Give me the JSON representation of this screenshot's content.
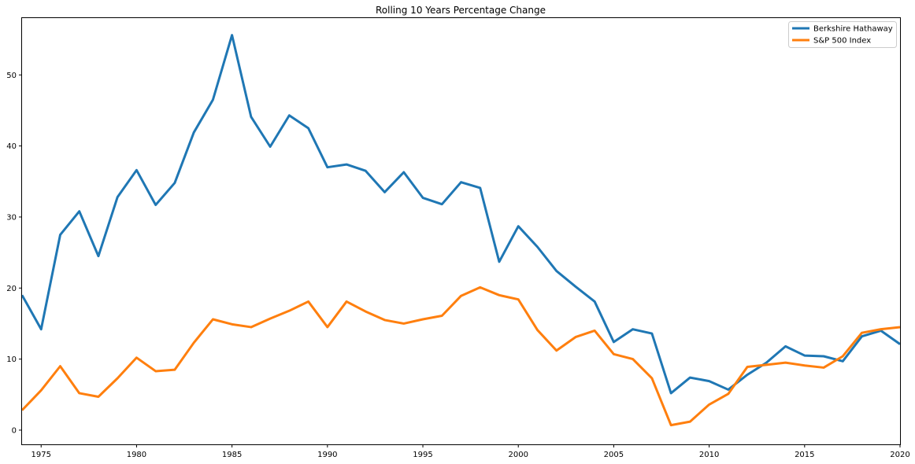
{
  "chart_data": {
    "type": "line",
    "title": "Rolling 10 Years Percentage Change",
    "xlabel": "",
    "ylabel": "",
    "xlim": [
      1974,
      2020
    ],
    "ylim": [
      -2,
      58
    ],
    "x_ticks": [
      1975,
      1980,
      1985,
      1990,
      1995,
      2000,
      2005,
      2010,
      2015,
      2020
    ],
    "y_ticks": [
      0,
      10,
      20,
      30,
      40,
      50
    ],
    "grid": false,
    "legend_position": "top-right",
    "x": [
      1974,
      1975,
      1976,
      1977,
      1978,
      1979,
      1980,
      1981,
      1982,
      1983,
      1984,
      1985,
      1986,
      1987,
      1988,
      1989,
      1990,
      1991,
      1992,
      1993,
      1994,
      1995,
      1996,
      1997,
      1998,
      1999,
      2000,
      2001,
      2002,
      2003,
      2004,
      2005,
      2006,
      2007,
      2008,
      2009,
      2010,
      2011,
      2012,
      2013,
      2014,
      2015,
      2016,
      2017,
      2018,
      2019,
      2020
    ],
    "series": [
      {
        "name": "Berkshire Hathaway",
        "color": "#1f77b4",
        "values": [
          19.0,
          14.2,
          27.5,
          30.8,
          24.5,
          32.8,
          36.6,
          31.7,
          34.8,
          41.9,
          46.5,
          55.6,
          44.1,
          39.9,
          44.3,
          42.5,
          37.0,
          37.4,
          36.5,
          33.5,
          36.3,
          32.7,
          31.8,
          34.9,
          34.1,
          23.7,
          28.7,
          25.8,
          22.4,
          20.2,
          18.1,
          12.4,
          14.2,
          13.6,
          5.2,
          7.4,
          6.9,
          5.7,
          7.8,
          9.5,
          11.8,
          10.5,
          10.4,
          9.7,
          13.2,
          14.0,
          12.1
        ]
      },
      {
        "name": "S&P 500 Index",
        "color": "#ff7f0e",
        "values": [
          2.8,
          5.6,
          9.0,
          5.2,
          4.7,
          7.3,
          10.2,
          8.3,
          8.5,
          12.3,
          15.6,
          14.9,
          14.5,
          15.7,
          16.8,
          18.1,
          14.5,
          18.1,
          16.7,
          15.5,
          15.0,
          15.6,
          16.1,
          18.9,
          20.1,
          19.0,
          18.4,
          14.1,
          11.2,
          13.1,
          14.0,
          10.7,
          10.0,
          7.3,
          0.7,
          1.2,
          3.6,
          5.1,
          8.9,
          9.2,
          9.5,
          9.1,
          8.8,
          10.4,
          13.7,
          14.2,
          14.5
        ]
      }
    ]
  }
}
